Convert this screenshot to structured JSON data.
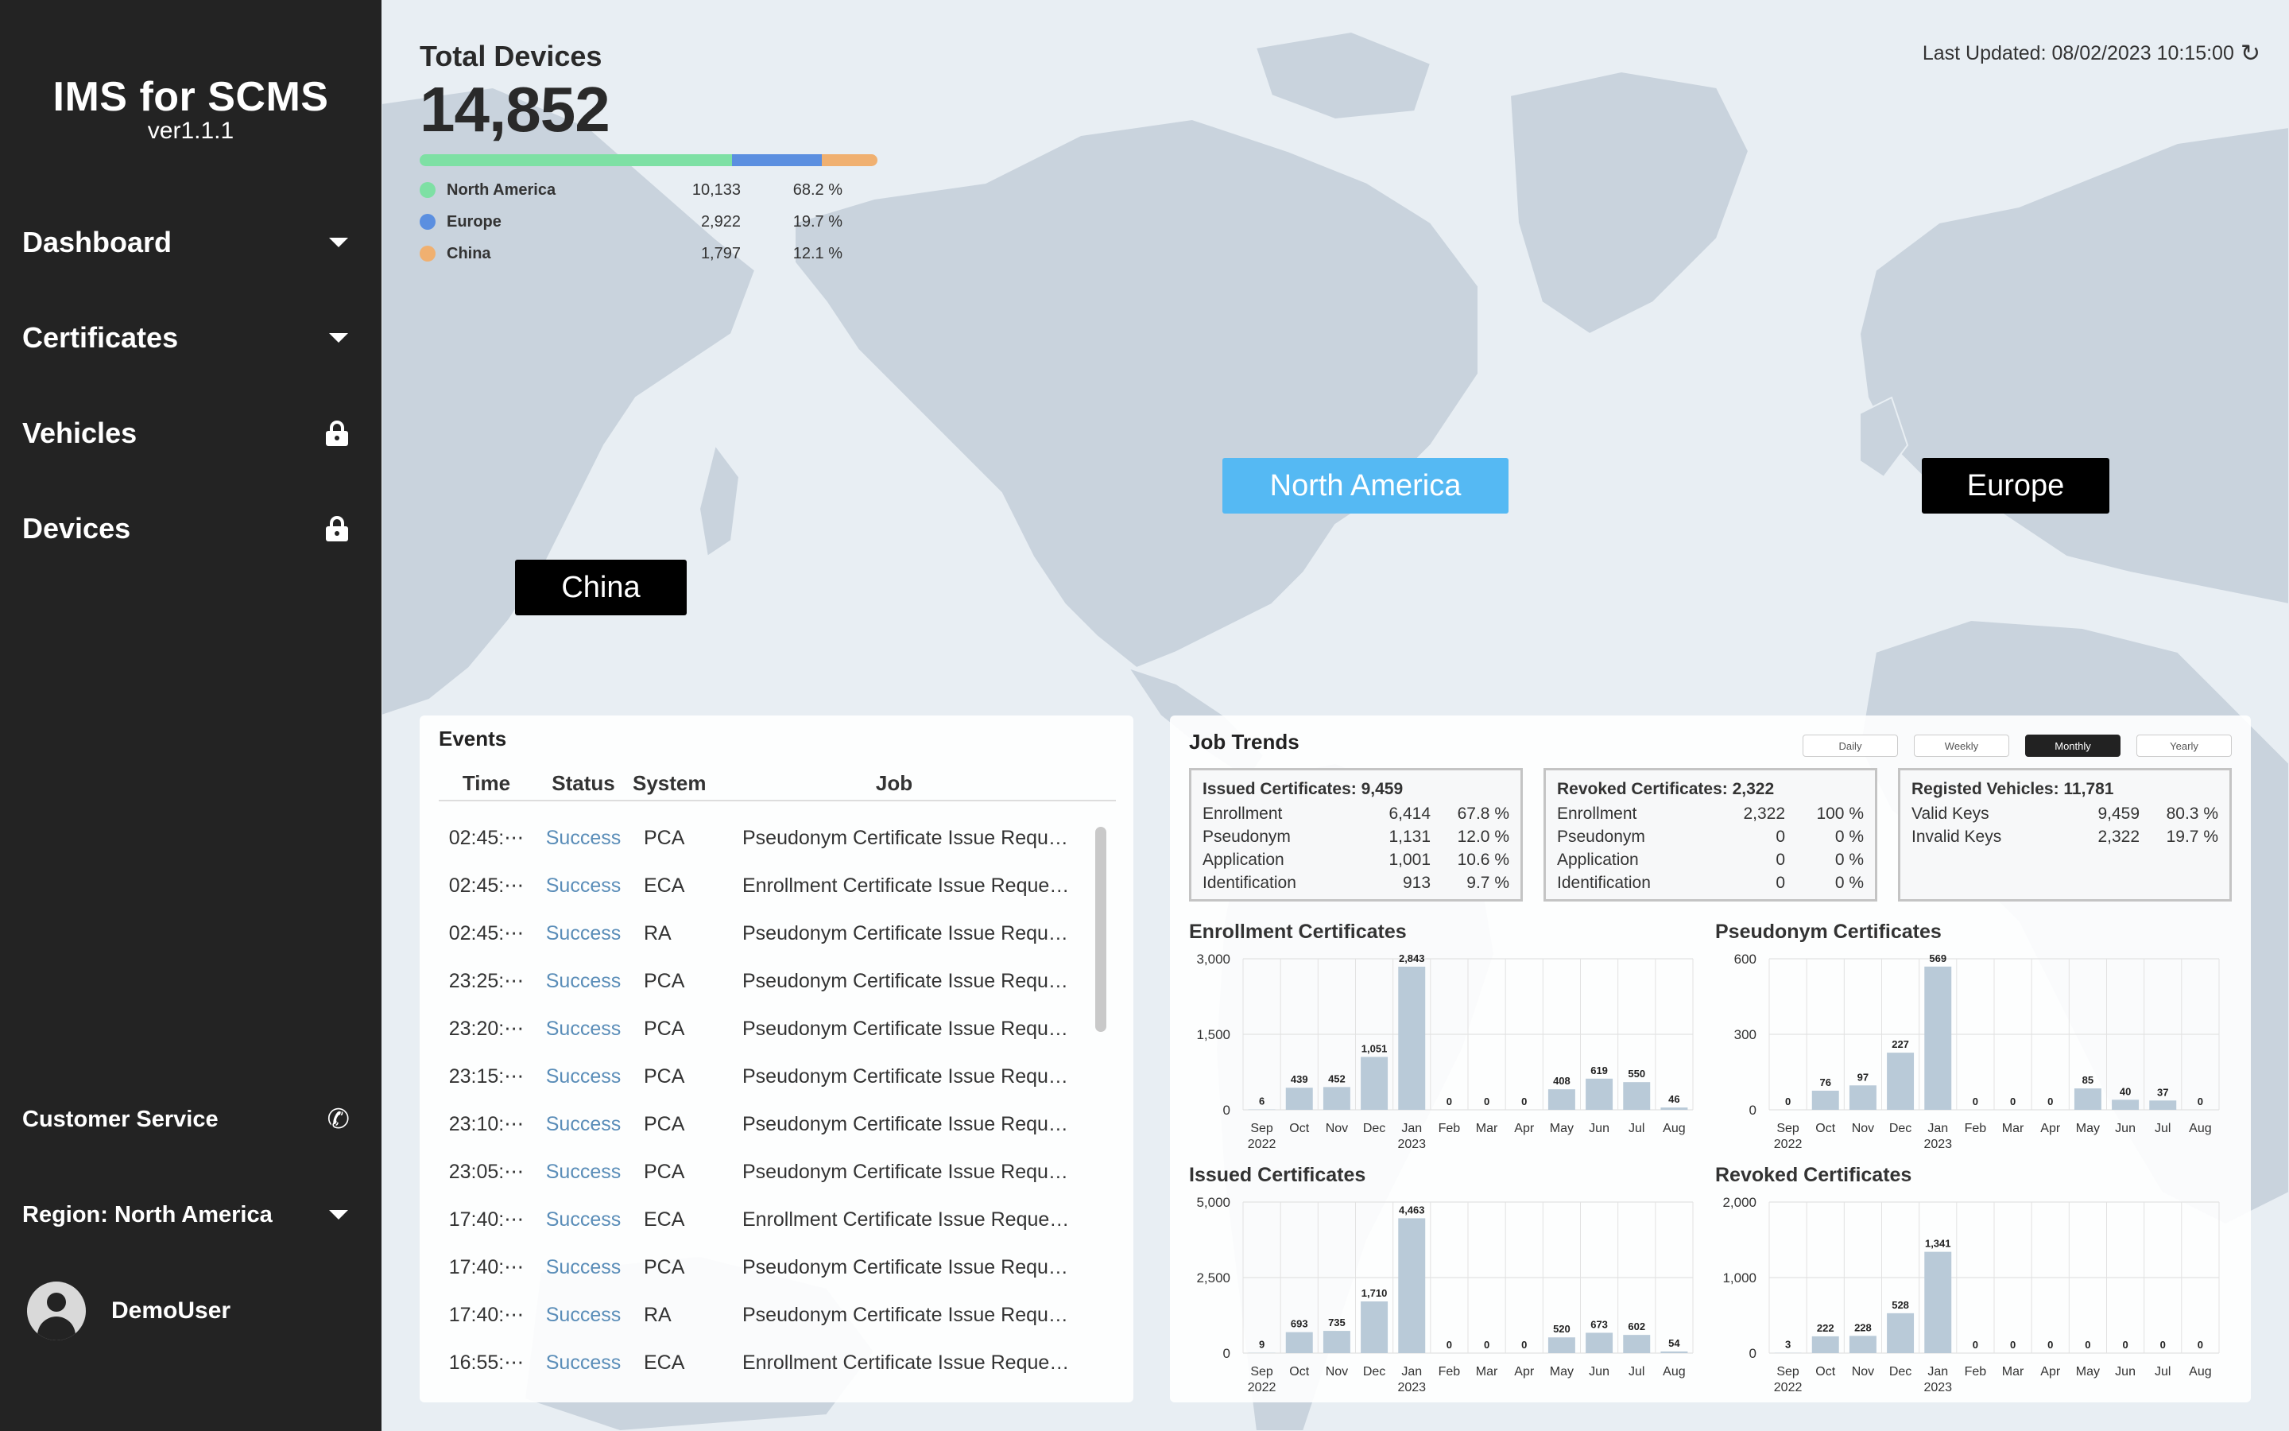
{
  "app": {
    "title": "IMS for SCMS",
    "version": "ver1.1.1"
  },
  "sidebar": {
    "nav": [
      {
        "label": "Dashboard",
        "icon": "caret-down-icon"
      },
      {
        "label": "Certificates",
        "icon": "caret-down-icon"
      },
      {
        "label": "Vehicles",
        "icon": "lock-icon"
      },
      {
        "label": "Devices",
        "icon": "lock-icon"
      }
    ],
    "customer_service": "Customer Service",
    "region": "Region: North America",
    "user": "DemoUser"
  },
  "total_devices": {
    "title": "Total Devices",
    "value": "14,852",
    "regions": [
      {
        "name": "North America",
        "count": "10,133",
        "pct": "68.2 %",
        "share": 68.2,
        "color": "#7ee0a4"
      },
      {
        "name": "Europe",
        "count": "2,922",
        "pct": "19.7 %",
        "share": 19.7,
        "color": "#5b8fe0"
      },
      {
        "name": "China",
        "count": "1,797",
        "pct": "12.1 %",
        "share": 12.1,
        "color": "#f0b070"
      }
    ]
  },
  "last_updated": "Last Updated: 08/02/2023 10:15:00",
  "map_labels": {
    "north_america": "North America",
    "europe": "Europe",
    "china": "China",
    "north_america_color": "#55b9f3",
    "europe_color": "#000000",
    "china_color": "#000000"
  },
  "events": {
    "title": "Events",
    "columns": [
      "Time",
      "Status",
      "System",
      "Job"
    ],
    "rows": [
      [
        "02:45:⋯",
        "Success",
        "PCA",
        "Pseudonym Certificate Issue Reque⋯"
      ],
      [
        "02:45:⋯",
        "Success",
        "ECA",
        "Enrollment Certificate Issue Reques⋯"
      ],
      [
        "02:45:⋯",
        "Success",
        "RA",
        "Pseudonym Certificate Issue Reque⋯"
      ],
      [
        "23:25:⋯",
        "Success",
        "PCA",
        "Pseudonym Certificate Issue Reque⋯"
      ],
      [
        "23:20:⋯",
        "Success",
        "PCA",
        "Pseudonym Certificate Issue Reque⋯"
      ],
      [
        "23:15:⋯",
        "Success",
        "PCA",
        "Pseudonym Certificate Issue Reque⋯"
      ],
      [
        "23:10:⋯",
        "Success",
        "PCA",
        "Pseudonym Certificate Issue Reque⋯"
      ],
      [
        "23:05:⋯",
        "Success",
        "PCA",
        "Pseudonym Certificate Issue Reque⋯"
      ],
      [
        "17:40:⋯",
        "Success",
        "ECA",
        "Enrollment Certificate Issue Reques⋯"
      ],
      [
        "17:40:⋯",
        "Success",
        "PCA",
        "Pseudonym Certificate Issue Reque⋯"
      ],
      [
        "17:40:⋯",
        "Success",
        "RA",
        "Pseudonym Certificate Issue Reque⋯"
      ],
      [
        "16:55:⋯",
        "Success",
        "ECA",
        "Enrollment Certificate Issue Reques⋯"
      ]
    ]
  },
  "job_trends": {
    "title": "Job Trends",
    "periods": [
      "Daily",
      "Weekly",
      "Monthly",
      "Yearly"
    ],
    "active_period": "Monthly",
    "summaries": [
      {
        "title": "Issued Certificates: 9,459",
        "rows": [
          [
            "Enrollment",
            "6,414",
            "67.8 %"
          ],
          [
            "Pseudonym",
            "1,131",
            "12.0 %"
          ],
          [
            "Application",
            "1,001",
            "10.6 %"
          ],
          [
            "Identification",
            "913",
            "9.7 %"
          ]
        ]
      },
      {
        "title": "Revoked Certificates: 2,322",
        "rows": [
          [
            "Enrollment",
            "2,322",
            "100 %"
          ],
          [
            "Pseudonym",
            "0",
            "0 %"
          ],
          [
            "Application",
            "0",
            "0 %"
          ],
          [
            "Identification",
            "0",
            "0 %"
          ]
        ]
      },
      {
        "title": "Registed Vehicles: 11,781",
        "rows": [
          [
            "Valid Keys",
            "9,459",
            "80.3 %"
          ],
          [
            "Invalid Keys",
            "2,322",
            "19.7 %"
          ]
        ]
      }
    ]
  },
  "chart_data": [
    {
      "type": "bar",
      "title": "Enrollment Certificates",
      "categories": [
        "Sep",
        "Oct",
        "Nov",
        "Dec",
        "Jan",
        "Feb",
        "Mar",
        "Apr",
        "May",
        "Jun",
        "Jul",
        "Aug"
      ],
      "year_labels": {
        "Sep": "2022",
        "Jan": "2023"
      },
      "values": [
        6,
        439,
        452,
        1051,
        2843,
        0,
        0,
        0,
        408,
        619,
        550,
        46
      ],
      "value_labels": [
        "6",
        "439",
        "452",
        "1,051",
        "2,843",
        "0",
        "0",
        "0",
        "408",
        "619",
        "550",
        "46"
      ],
      "ylim": [
        0,
        3000
      ],
      "yticks": [
        "0",
        "1,500",
        "3,000"
      ],
      "grid": true,
      "bar_color": "#b9cad8"
    },
    {
      "type": "bar",
      "title": "Pseudonym Certificates",
      "categories": [
        "Sep",
        "Oct",
        "Nov",
        "Dec",
        "Jan",
        "Feb",
        "Mar",
        "Apr",
        "May",
        "Jun",
        "Jul",
        "Aug"
      ],
      "year_labels": {
        "Sep": "2022",
        "Jan": "2023"
      },
      "values": [
        0,
        76,
        97,
        227,
        569,
        0,
        0,
        0,
        85,
        40,
        37,
        0
      ],
      "value_labels": [
        "0",
        "76",
        "97",
        "227",
        "569",
        "0",
        "0",
        "0",
        "85",
        "40",
        "37",
        "0"
      ],
      "ylim": [
        0,
        600
      ],
      "yticks": [
        "0",
        "300",
        "600"
      ],
      "grid": true,
      "bar_color": "#b9cad8"
    },
    {
      "type": "bar",
      "title": "Issued Certificates",
      "categories": [
        "Sep",
        "Oct",
        "Nov",
        "Dec",
        "Jan",
        "Feb",
        "Mar",
        "Apr",
        "May",
        "Jun",
        "Jul",
        "Aug"
      ],
      "year_labels": {
        "Sep": "2022",
        "Jan": "2023"
      },
      "values": [
        9,
        693,
        735,
        1710,
        4463,
        0,
        0,
        0,
        520,
        673,
        602,
        54
      ],
      "value_labels": [
        "9",
        "693",
        "735",
        "1,710",
        "4,463",
        "0",
        "0",
        "0",
        "520",
        "673",
        "602",
        "54"
      ],
      "ylim": [
        0,
        5000
      ],
      "yticks": [
        "0",
        "2,500",
        "5,000"
      ],
      "grid": true,
      "bar_color": "#b9cad8"
    },
    {
      "type": "bar",
      "title": "Revoked Certificates",
      "categories": [
        "Sep",
        "Oct",
        "Nov",
        "Dec",
        "Jan",
        "Feb",
        "Mar",
        "Apr",
        "May",
        "Jun",
        "Jul",
        "Aug"
      ],
      "year_labels": {
        "Sep": "2022",
        "Jan": "2023"
      },
      "values": [
        3,
        222,
        228,
        528,
        1341,
        0,
        0,
        0,
        0,
        0,
        0,
        0
      ],
      "value_labels": [
        "3",
        "222",
        "228",
        "528",
        "1,341",
        "0",
        "0",
        "0",
        "0",
        "0",
        "0",
        "0"
      ],
      "ylim": [
        0,
        2000
      ],
      "yticks": [
        "0",
        "1,000",
        "2,000"
      ],
      "grid": true,
      "bar_color": "#b9cad8"
    }
  ]
}
